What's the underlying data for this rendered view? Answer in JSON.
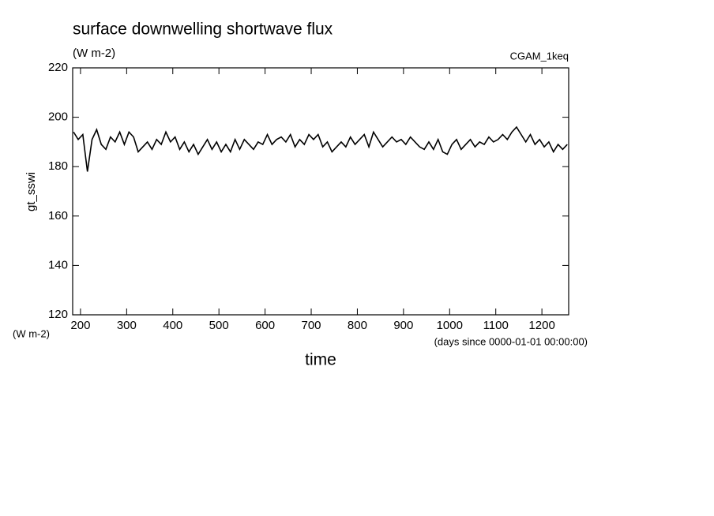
{
  "chart_data": {
    "type": "line",
    "title": "surface downwelling shortwave flux",
    "subtitle": "(W m-2)",
    "annotation": "CGAM_1keq",
    "ylabel": "gt_sswi",
    "yunit": "(W m-2)",
    "xlabel": "time",
    "xunit": "(days since 0000-01-01 00:00:00)",
    "xlim": [
      183,
      1258
    ],
    "ylim": [
      120,
      220
    ],
    "xticks": [
      200,
      300,
      400,
      500,
      600,
      700,
      800,
      900,
      1000,
      1100,
      1200
    ],
    "yticks": [
      120,
      140,
      160,
      180,
      200,
      220
    ],
    "series": [
      {
        "color": "#000000",
        "x": [
          185,
          195,
          205,
          215,
          225,
          235,
          245,
          255,
          265,
          275,
          285,
          295,
          305,
          315,
          325,
          335,
          345,
          355,
          365,
          375,
          385,
          395,
          405,
          415,
          425,
          435,
          445,
          455,
          465,
          475,
          485,
          495,
          505,
          515,
          525,
          535,
          545,
          555,
          565,
          575,
          585,
          595,
          605,
          615,
          625,
          635,
          645,
          655,
          665,
          675,
          685,
          695,
          705,
          715,
          725,
          735,
          745,
          755,
          765,
          775,
          785,
          795,
          805,
          815,
          825,
          835,
          845,
          855,
          865,
          875,
          885,
          895,
          905,
          915,
          925,
          935,
          945,
          955,
          965,
          975,
          985,
          995,
          1005,
          1015,
          1025,
          1035,
          1045,
          1055,
          1065,
          1075,
          1085,
          1095,
          1105,
          1115,
          1125,
          1135,
          1145,
          1155,
          1165,
          1175,
          1185,
          1195,
          1205,
          1215,
          1225,
          1235,
          1245,
          1255
        ],
        "values": [
          194,
          191,
          193,
          178,
          191,
          195,
          189,
          187,
          192,
          190,
          194,
          189,
          194,
          192,
          186,
          188,
          190,
          187,
          191,
          189,
          194,
          190,
          192,
          187,
          190,
          186,
          189,
          185,
          188,
          191,
          187,
          190,
          186,
          189,
          186,
          191,
          187,
          191,
          189,
          187,
          190,
          189,
          193,
          189,
          191,
          192,
          190,
          193,
          188,
          191,
          189,
          193,
          191,
          193,
          188,
          190,
          186,
          188,
          190,
          188,
          192,
          189,
          191,
          193,
          188,
          194,
          191,
          188,
          190,
          192,
          190,
          191,
          189,
          192,
          190,
          188,
          187,
          190,
          187,
          191,
          186,
          185,
          189,
          191,
          187,
          189,
          191,
          188,
          190,
          189,
          192,
          190,
          191,
          193,
          191,
          194,
          196,
          193,
          190,
          193,
          189,
          191,
          188,
          190,
          186,
          189,
          187,
          189
        ]
      }
    ]
  }
}
